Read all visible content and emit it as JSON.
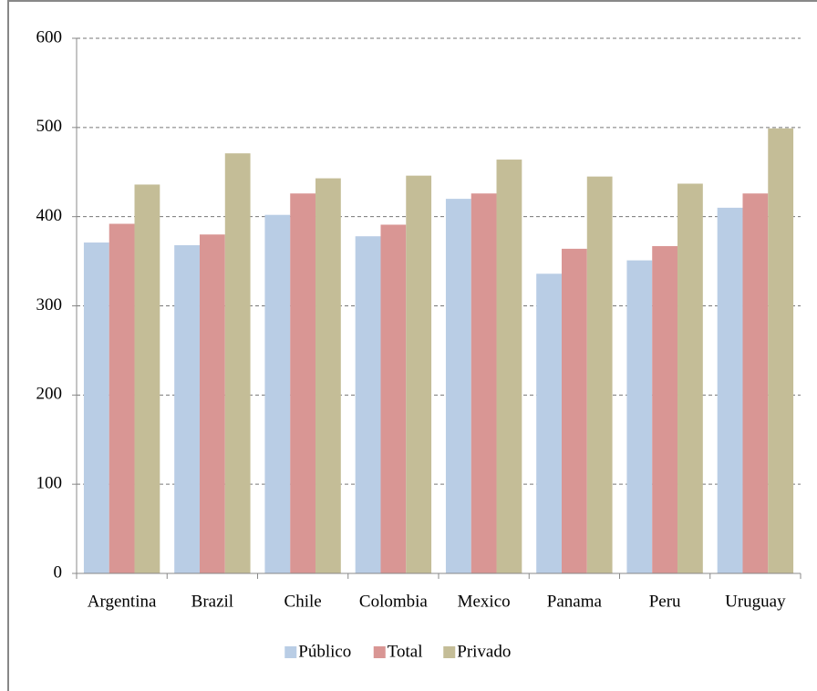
{
  "chart_data": {
    "type": "bar",
    "categories": [
      "Argentina",
      "Brazil",
      "Chile",
      "Colombia",
      "Mexico",
      "Panama",
      "Peru",
      "Uruguay"
    ],
    "series": [
      {
        "name": "Público",
        "color": "#b9cde5",
        "values": [
          371,
          368,
          402,
          378,
          420,
          336,
          351,
          410
        ]
      },
      {
        "name": "Total",
        "color": "#d99694",
        "values": [
          392,
          380,
          426,
          391,
          426,
          364,
          367,
          426
        ]
      },
      {
        "name": "Privado",
        "color": "#c4bd97",
        "values": [
          436,
          471,
          443,
          446,
          464,
          445,
          437,
          499
        ]
      }
    ],
    "ylim": [
      0,
      600
    ],
    "yticks": [
      0,
      100,
      200,
      300,
      400,
      500,
      600
    ],
    "grid": true,
    "legend": "bottom"
  }
}
